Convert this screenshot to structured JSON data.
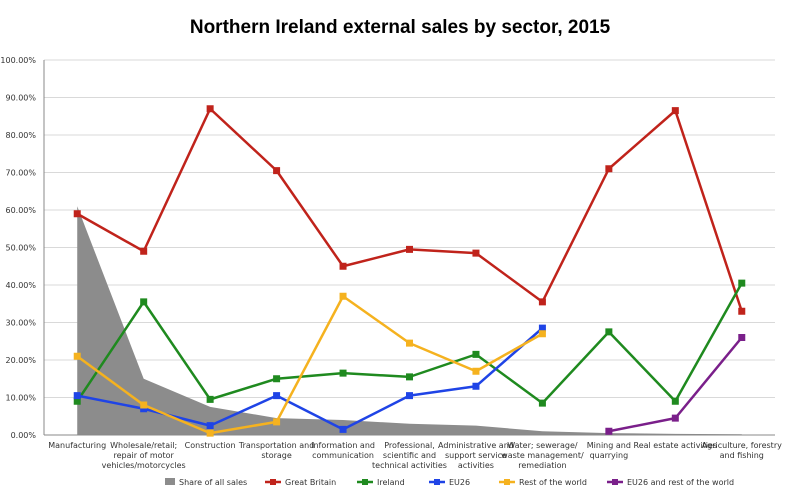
{
  "chart_data": {
    "type": "line",
    "title": "Northern Ireland external sales by sector, 2015",
    "xlabel": "",
    "ylabel": "",
    "ylim": [
      0,
      100
    ],
    "y_ticks": [
      "0.00%",
      "10.00%",
      "20.00%",
      "30.00%",
      "40.00%",
      "50.00%",
      "60.00%",
      "70.00%",
      "80.00%",
      "90.00%",
      "100.00%"
    ],
    "grid": true,
    "legend_position": "bottom",
    "categories": [
      [
        "Manufacturing"
      ],
      [
        "Wholesale/retail;",
        "repair of motor",
        "vehicles/motorcycles"
      ],
      [
        "Construction"
      ],
      [
        "Transportation and",
        "storage"
      ],
      [
        "Information and",
        "communication"
      ],
      [
        "Professional,",
        "scientific and",
        "technical activities"
      ],
      [
        "Administrative and",
        "support service",
        "activities"
      ],
      [
        "Water; sewerage/",
        "waste management/",
        "remediation"
      ],
      [
        "Mining and",
        "quarrying"
      ],
      [
        "Real estate activities"
      ],
      [
        "Agriculture, forestry",
        "and fishing"
      ]
    ],
    "area": {
      "name": "Share of all sales",
      "color": "#8c8c8c",
      "values": [
        61,
        15,
        7.5,
        4.5,
        4,
        3,
        2.5,
        1,
        0.5,
        0.3,
        0.2
      ]
    },
    "series": [
      {
        "name": "Great Britain",
        "color": "#c0231b",
        "values": [
          59,
          49,
          87,
          70.5,
          45,
          49.5,
          48.5,
          35.5,
          71,
          86.5,
          33
        ]
      },
      {
        "name": "Ireland",
        "color": "#1f8a1f",
        "values": [
          9,
          35.5,
          9.5,
          15,
          16.5,
          15.5,
          21.5,
          8.5,
          27.5,
          9,
          40.5
        ]
      },
      {
        "name": "EU26",
        "color": "#1f44e6",
        "values": [
          10.5,
          7,
          2.5,
          10.5,
          1.5,
          10.5,
          13,
          28.5,
          null,
          null,
          null
        ]
      },
      {
        "name": "Rest of the world",
        "color": "#f5b21f",
        "values": [
          21,
          8,
          0.5,
          3.5,
          37,
          24.5,
          17,
          27,
          null,
          null,
          null
        ]
      },
      {
        "name": "EU26 and rest of the world",
        "color": "#7a1f8a",
        "values": [
          null,
          null,
          null,
          null,
          null,
          null,
          null,
          null,
          1,
          4.5,
          26
        ]
      }
    ]
  }
}
